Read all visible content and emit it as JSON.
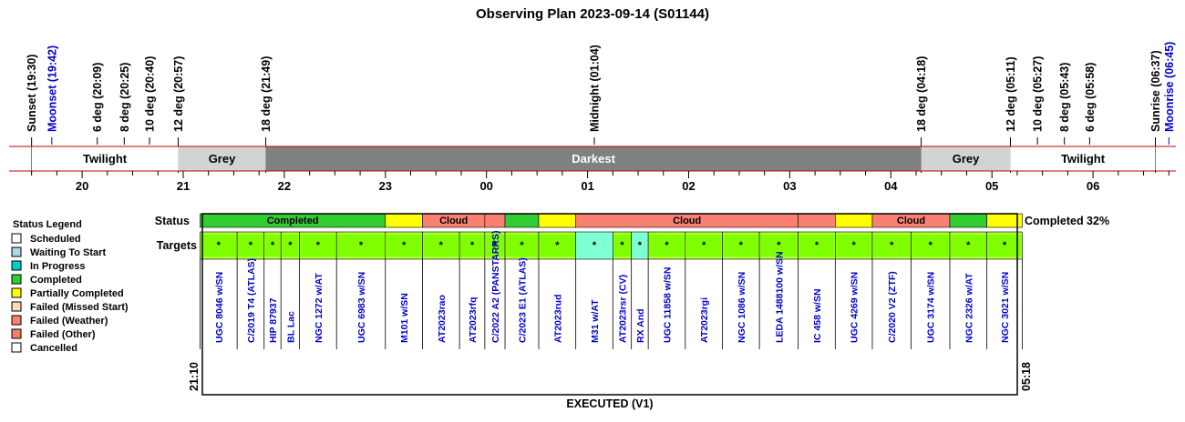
{
  "title": "Observing Plan 2023-09-14 (S01144)",
  "events": [
    {
      "label": "Sunset (19:30)",
      "color": "#000000",
      "time": "19:30"
    },
    {
      "label": "Moonset (19:42)",
      "color": "#0000cc",
      "time": "19:42"
    },
    {
      "label": "6 deg (20:09)",
      "color": "#000000",
      "time": "20:09"
    },
    {
      "label": "8 deg (20:25)",
      "color": "#000000",
      "time": "20:25"
    },
    {
      "label": "10 deg (20:40)",
      "color": "#000000",
      "time": "20:40"
    },
    {
      "label": "12 deg (20:57)",
      "color": "#000000",
      "time": "20:57"
    },
    {
      "label": "18 deg (21:49)",
      "color": "#000000",
      "time": "21:49"
    },
    {
      "label": "Midnight (01:04)",
      "color": "#000000",
      "time": "01:04"
    },
    {
      "label": "18 deg (04:18)",
      "color": "#000000",
      "time": "04:18"
    },
    {
      "label": "12 deg (05:11)",
      "color": "#000000",
      "time": "05:11"
    },
    {
      "label": "10 deg (05:27)",
      "color": "#000000",
      "time": "05:27"
    },
    {
      "label": "8 deg (05:43)",
      "color": "#000000",
      "time": "05:43"
    },
    {
      "label": "6 deg (05:58)",
      "color": "#000000",
      "time": "05:58"
    },
    {
      "label": "Sunrise (06:37)",
      "color": "#000000",
      "time": "06:37"
    },
    {
      "label": "Moonrise (06:45)",
      "color": "#0000cc",
      "time": "06:45"
    }
  ],
  "bands": [
    {
      "label": "Twilight",
      "start": "19:30",
      "end": "20:57",
      "color": "#ffffff",
      "text_color": "#000000"
    },
    {
      "label": "Grey",
      "start": "20:57",
      "end": "21:49",
      "color": "#d3d3d3",
      "text_color": "#000000"
    },
    {
      "label": "Darkest",
      "start": "21:49",
      "end": "04:18",
      "color": "#808080",
      "text_color": "#ffffff"
    },
    {
      "label": "Grey",
      "start": "04:18",
      "end": "05:11",
      "color": "#d3d3d3",
      "text_color": "#000000"
    },
    {
      "label": "Twilight",
      "start": "05:11",
      "end": "06:37",
      "color": "#ffffff",
      "text_color": "#000000"
    }
  ],
  "hours": [
    "20",
    "21",
    "22",
    "23",
    "00",
    "01",
    "02",
    "03",
    "04",
    "05",
    "06"
  ],
  "legend": {
    "title": "Status Legend",
    "items": [
      {
        "label": "Scheduled",
        "color": "#ffffff"
      },
      {
        "label": "Waiting To Start",
        "color": "#add8e6"
      },
      {
        "label": "In Progress",
        "color": "#00cccc"
      },
      {
        "label": "Completed",
        "color": "#32cd32"
      },
      {
        "label": "Partially Completed",
        "color": "#ffff00"
      },
      {
        "label": "Failed (Missed Start)",
        "color": "#ffdab9"
      },
      {
        "label": "Failed (Weather)",
        "color": "#fa8072"
      },
      {
        "label": "Failed (Other)",
        "color": "#f08060"
      },
      {
        "label": "Cancelled",
        "color": "#ffffff"
      }
    ]
  },
  "status_row_label": "Status",
  "targets_row_label": "Targets",
  "completion_text": "Completed 32%",
  "status_segments": [
    {
      "label": "Completed",
      "color": "#32cd32",
      "start": "21:10",
      "end": "23:00"
    },
    {
      "label": "",
      "color": "#ffff00",
      "start": "23:00",
      "end": "23:22"
    },
    {
      "label": "Cloud",
      "color": "#fa8072",
      "start": "23:22",
      "end": "23:59"
    },
    {
      "label": "",
      "color": "#fa8072",
      "start": "23:59",
      "end": "00:11"
    },
    {
      "label": "",
      "color": "#32cd32",
      "start": "00:11",
      "end": "00:31"
    },
    {
      "label": "",
      "color": "#ffff00",
      "start": "00:31",
      "end": "00:53"
    },
    {
      "label": "Cloud",
      "color": "#fa8072",
      "start": "00:53",
      "end": "03:05"
    },
    {
      "label": "",
      "color": "#fa8072",
      "start": "03:05",
      "end": "03:27"
    },
    {
      "label": "",
      "color": "#ffff00",
      "start": "03:27",
      "end": "03:49"
    },
    {
      "label": "Cloud",
      "color": "#fa8072",
      "start": "03:49",
      "end": "04:35"
    },
    {
      "label": "",
      "color": "#32cd32",
      "start": "04:35",
      "end": "04:57"
    },
    {
      "label": "",
      "color": "#ffff00",
      "start": "04:57",
      "end": "05:18"
    }
  ],
  "targets": [
    {
      "name": "UGC 8046 w/SN",
      "color": "#7fff00",
      "start": "21:10",
      "end": "21:32"
    },
    {
      "name": "C/2019 T4 (ATLAS)",
      "color": "#7fff00",
      "start": "21:32",
      "end": "21:48"
    },
    {
      "name": "HIP 87937",
      "color": "#7fff00",
      "start": "21:48",
      "end": "21:58"
    },
    {
      "name": "BL Lac",
      "color": "#7fff00",
      "start": "21:58",
      "end": "22:09"
    },
    {
      "name": "NGC 1272 w/AT",
      "color": "#7fff00",
      "start": "22:09",
      "end": "22:31"
    },
    {
      "name": "UGC 6983 w/SN",
      "color": "#7fff00",
      "start": "22:31",
      "end": "23:00"
    },
    {
      "name": "M101 w/SN",
      "color": "#7fff00",
      "start": "23:00",
      "end": "23:22"
    },
    {
      "name": "AT2023rao",
      "color": "#7fff00",
      "start": "23:22",
      "end": "23:44"
    },
    {
      "name": "AT2023rfq",
      "color": "#7fff00",
      "start": "23:44",
      "end": "23:59"
    },
    {
      "name": "C/2022 A2 (PANSTARRS)",
      "color": "#7fff00",
      "start": "23:59",
      "end": "00:11"
    },
    {
      "name": "C/2023 E1 (ATLAS)",
      "color": "#7fff00",
      "start": "00:11",
      "end": "00:31"
    },
    {
      "name": "AT2023rud",
      "color": "#7fff00",
      "start": "00:31",
      "end": "00:53"
    },
    {
      "name": "M31 w/AT",
      "color": "#7fffd4",
      "start": "00:53",
      "end": "01:15"
    },
    {
      "name": "AT2023rsr (CV)",
      "color": "#7fff00",
      "start": "01:15",
      "end": "01:26"
    },
    {
      "name": "RX And",
      "color": "#7fffd4",
      "start": "01:26",
      "end": "01:36"
    },
    {
      "name": "UGC 11858 w/SN",
      "color": "#7fff00",
      "start": "01:36",
      "end": "01:58"
    },
    {
      "name": "AT2023rgi",
      "color": "#7fff00",
      "start": "01:58",
      "end": "02:20"
    },
    {
      "name": "NGC 1086 w/SN",
      "color": "#7fff00",
      "start": "02:20",
      "end": "02:42"
    },
    {
      "name": "LEDA 1488100 w/SN",
      "color": "#7fff00",
      "start": "02:42",
      "end": "03:05"
    },
    {
      "name": "IC 458 w/SN",
      "color": "#7fff00",
      "start": "03:05",
      "end": "03:27"
    },
    {
      "name": "UGC 4269 w/SN",
      "color": "#7fff00",
      "start": "03:27",
      "end": "03:49"
    },
    {
      "name": "C/2020 V2 (ZTF)",
      "color": "#7fff00",
      "start": "03:49",
      "end": "04:12"
    },
    {
      "name": "UGC 3174 w/SN",
      "color": "#7fff00",
      "start": "04:12",
      "end": "04:35"
    },
    {
      "name": "NGC 2326 w/AT",
      "color": "#7fff00",
      "start": "04:35",
      "end": "04:57"
    },
    {
      "name": "NGC 3021 w/SN",
      "color": "#7fff00",
      "start": "04:57",
      "end": "05:18"
    }
  ],
  "target_marker": "*",
  "exec_start_label": "21:10",
  "exec_end_label": "05:18",
  "footer": "EXECUTED (V1)",
  "colors": {
    "timeline_line": "#c00000",
    "target_text": "#0000cc",
    "target_fill_gradient": "#adff2f"
  }
}
